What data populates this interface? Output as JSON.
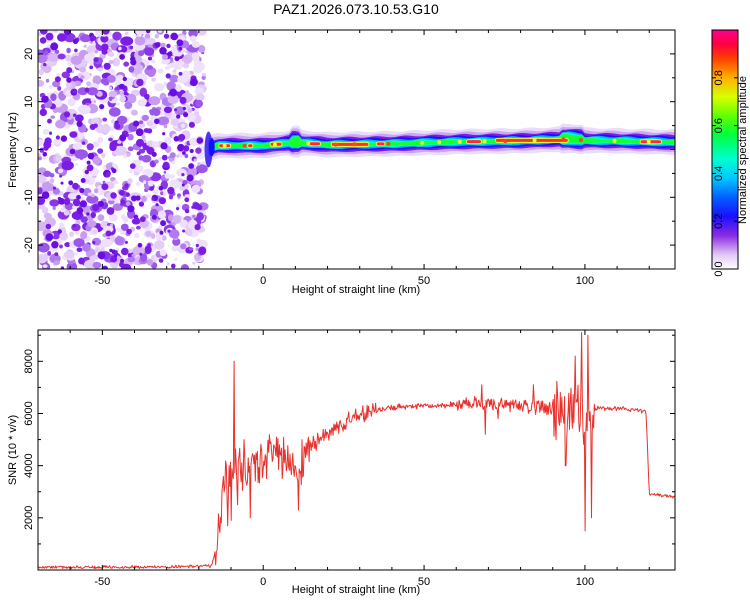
{
  "title": "PAZ1.2026.073.10.53.G10",
  "chart_data": [
    {
      "type": "heatmap",
      "name": "spectrogram",
      "xlabel": "Height of straight line (km)",
      "ylabel": "Frequency (Hz)",
      "xlim": [
        -70,
        128
      ],
      "ylim": [
        -25,
        25
      ],
      "xticks": [
        -50,
        0,
        50,
        100
      ],
      "yticks": [
        -20,
        -10,
        0,
        10,
        20
      ],
      "noise_region_x": [
        -70,
        -18
      ],
      "signal_center_hz": [
        [
          -18,
          0
        ],
        [
          -14,
          0.8
        ],
        [
          0,
          0.8
        ],
        [
          10,
          1.5
        ],
        [
          20,
          1.0
        ],
        [
          40,
          1.2
        ],
        [
          60,
          1.6
        ],
        [
          80,
          1.8
        ],
        [
          95,
          2.2
        ],
        [
          100,
          1.9
        ],
        [
          110,
          1.8
        ],
        [
          128,
          1.5
        ]
      ],
      "colorbar": {
        "label": "Normalized spectral amplitude",
        "range": [
          0,
          1
        ],
        "ticks": [
          0.0,
          0.2,
          0.4,
          0.6,
          0.8
        ]
      }
    },
    {
      "type": "line",
      "name": "snr",
      "xlabel": "Height of straight line (km)",
      "ylabel": "SNR (10 * v/v)",
      "xlim": [
        -70,
        128
      ],
      "ylim": [
        0,
        9200
      ],
      "xticks": [
        -50,
        0,
        50,
        100
      ],
      "yticks": [
        2000,
        4000,
        6000,
        8000
      ],
      "color": "#e8312c",
      "envelope": [
        [
          -70,
          100
        ],
        [
          -30,
          120
        ],
        [
          -16,
          150
        ],
        [
          -14,
          1200
        ],
        [
          -12,
          3500
        ],
        [
          -9,
          3800
        ],
        [
          -5,
          3900
        ],
        [
          -2,
          4000
        ],
        [
          0,
          4300
        ],
        [
          3,
          4400
        ],
        [
          6,
          4200
        ],
        [
          8,
          4300
        ],
        [
          10,
          4000
        ],
        [
          11,
          3300
        ],
        [
          13,
          4400
        ],
        [
          17,
          5000
        ],
        [
          22,
          5400
        ],
        [
          27,
          5800
        ],
        [
          32,
          6000
        ],
        [
          37,
          6150
        ],
        [
          42,
          6250
        ],
        [
          50,
          6300
        ],
        [
          55,
          6300
        ],
        [
          60,
          6350
        ],
        [
          70,
          6400
        ],
        [
          80,
          6300
        ],
        [
          88,
          6200
        ],
        [
          95,
          6100
        ],
        [
          99,
          5900
        ],
        [
          101,
          6000
        ],
        [
          104,
          6200
        ],
        [
          110,
          6200
        ],
        [
          115,
          6150
        ],
        [
          119,
          6050
        ],
        [
          120,
          2900
        ],
        [
          128,
          2800
        ]
      ],
      "spikes": [
        [
          -11,
          1700
        ],
        [
          -10,
          1900
        ],
        [
          -9,
          8000
        ],
        [
          -8,
          2500
        ],
        [
          -6,
          5000
        ],
        [
          -4,
          2000
        ],
        [
          5,
          4800
        ],
        [
          11,
          2300
        ],
        [
          12,
          5000
        ],
        [
          68,
          7100
        ],
        [
          69,
          5200
        ],
        [
          73,
          5800
        ],
        [
          84,
          7100
        ],
        [
          91,
          5000
        ],
        [
          94,
          4000
        ],
        [
          97,
          8200
        ],
        [
          99,
          9100
        ],
        [
          100,
          1500
        ],
        [
          101,
          9000
        ],
        [
          102,
          2000
        ]
      ]
    }
  ]
}
